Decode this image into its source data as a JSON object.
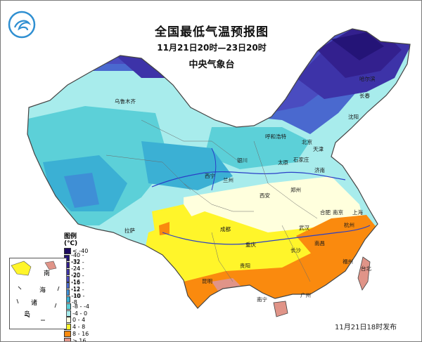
{
  "title": "全国最低气温预报图",
  "period": "11月21日20时—23日20时",
  "agency": "中央气象台",
  "issue_time": "11月21日18时发布",
  "legend": {
    "title": "图例(℃)",
    "items": [
      {
        "label": "< -40",
        "color": "#1c0a5e"
      },
      {
        "label": "-40 - -32",
        "color": "#241477"
      },
      {
        "label": "-32 - -24",
        "color": "#33208e"
      },
      {
        "label": "-24 - -20",
        "color": "#3d33a8"
      },
      {
        "label": "-20 - -16",
        "color": "#4a4cc0"
      },
      {
        "label": "-16 - -12",
        "color": "#4a69cf"
      },
      {
        "label": "-12 - -10",
        "color": "#3f8fd6"
      },
      {
        "label": "-10 - -8",
        "color": "#3bb0d4"
      },
      {
        "label": "-8 - -4",
        "color": "#5cd0d8"
      },
      {
        "label": "-4 - 0",
        "color": "#a8ecec"
      },
      {
        "label": "0 - 4",
        "color": "#ffffdd"
      },
      {
        "label": "4 - 8",
        "color": "#fff52a"
      },
      {
        "label": "8 - 16",
        "color": "#fa8a0e"
      },
      {
        "label": "> 16",
        "color": "#e09488"
      }
    ]
  },
  "inset_labels": [
    "南",
    "海",
    "诸",
    "岛"
  ],
  "cities": [
    {
      "key": "wlmq",
      "name": "乌鲁木齐"
    },
    {
      "key": "heb",
      "name": "哈尔滨"
    },
    {
      "key": "cc",
      "name": "长春"
    },
    {
      "key": "sy",
      "name": "沈阳"
    },
    {
      "key": "hhht",
      "name": "呼和浩特"
    },
    {
      "key": "bj",
      "name": "北京"
    },
    {
      "key": "tj",
      "name": "天津"
    },
    {
      "key": "yc",
      "name": "银川"
    },
    {
      "key": "ty",
      "name": "太原"
    },
    {
      "key": "sjz",
      "name": "石家庄"
    },
    {
      "key": "jn",
      "name": "济南"
    },
    {
      "key": "xn",
      "name": "西宁"
    },
    {
      "key": "lz",
      "name": "兰州"
    },
    {
      "key": "zz",
      "name": "郑州"
    },
    {
      "key": "xa",
      "name": "西安"
    },
    {
      "key": "hf",
      "name": "合肥"
    },
    {
      "key": "nj",
      "name": "南京"
    },
    {
      "key": "sh",
      "name": "上海"
    },
    {
      "key": "hz",
      "name": "杭州"
    },
    {
      "key": "wh",
      "name": "武汉"
    },
    {
      "key": "ls",
      "name": "拉萨"
    },
    {
      "key": "cd",
      "name": "成都"
    },
    {
      "key": "cq",
      "name": "重庆"
    },
    {
      "key": "cs",
      "name": "长沙"
    },
    {
      "key": "nc",
      "name": "南昌"
    },
    {
      "key": "fz",
      "name": "福州"
    },
    {
      "key": "gy",
      "name": "贵阳"
    },
    {
      "key": "km",
      "name": "昆明"
    },
    {
      "key": "nn",
      "name": "南宁"
    },
    {
      "key": "gz",
      "name": "广州"
    },
    {
      "key": "tb",
      "name": "台北"
    }
  ]
}
